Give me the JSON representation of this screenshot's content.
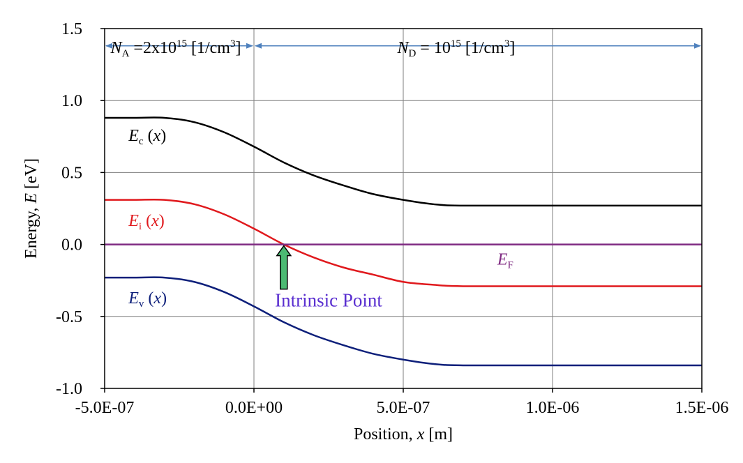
{
  "chart_data": {
    "type": "line",
    "xlabel": {
      "prefix": "Position, ",
      "var": "x",
      "suffix": " [m]"
    },
    "ylabel": {
      "prefix": "Energy, ",
      "var": "E",
      "suffix": " [eV]"
    },
    "xlim": [
      -5e-07,
      1.5e-06
    ],
    "ylim": [
      -1.0,
      1.5
    ],
    "x_ticks": [
      -5e-07,
      0,
      5e-07,
      1e-06,
      1.5e-06
    ],
    "x_tick_labels": [
      "-5.0E-07",
      "0.0E+00",
      "5.0E-07",
      "1.0E-06",
      "1.5E-06"
    ],
    "y_ticks": [
      -1.0,
      -0.5,
      0.0,
      0.5,
      1.0,
      1.5
    ],
    "y_tick_labels": [
      "-1.0",
      "-0.5",
      "0.0",
      "0.5",
      "1.0",
      "1.5"
    ],
    "grid": true,
    "series": [
      {
        "key": "Ec",
        "color": "#000000",
        "x": [
          -5e-07,
          -4e-07,
          -3e-07,
          -2e-07,
          -1e-07,
          0,
          1e-07,
          2e-07,
          3e-07,
          4e-07,
          5e-07,
          6e-07,
          7e-07,
          1e-06,
          1.5e-06
        ],
        "y": [
          0.88,
          0.88,
          0.88,
          0.85,
          0.78,
          0.68,
          0.57,
          0.48,
          0.41,
          0.35,
          0.31,
          0.28,
          0.27,
          0.27,
          0.27
        ]
      },
      {
        "key": "Ei",
        "color": "#e0191d",
        "x": [
          -5e-07,
          -4e-07,
          -3e-07,
          -2e-07,
          -1e-07,
          0,
          1e-07,
          2e-07,
          3e-07,
          4e-07,
          5e-07,
          6e-07,
          7e-07,
          1e-06,
          1.5e-06
        ],
        "y": [
          0.31,
          0.31,
          0.31,
          0.28,
          0.21,
          0.11,
          0.0,
          -0.09,
          -0.16,
          -0.21,
          -0.26,
          -0.28,
          -0.29,
          -0.29,
          -0.29
        ]
      },
      {
        "key": "EF",
        "color": "#7f2a82",
        "x": [
          -5e-07,
          1.5e-06
        ],
        "y": [
          0.0,
          0.0
        ]
      },
      {
        "key": "Ev",
        "color": "#0d1f7a",
        "x": [
          -5e-07,
          -4e-07,
          -3e-07,
          -2e-07,
          -1e-07,
          0,
          1e-07,
          2e-07,
          3e-07,
          4e-07,
          5e-07,
          6e-07,
          7e-07,
          1e-06,
          1.5e-06
        ],
        "y": [
          -0.23,
          -0.23,
          -0.23,
          -0.26,
          -0.33,
          -0.43,
          -0.54,
          -0.63,
          -0.7,
          -0.76,
          -0.8,
          -0.83,
          -0.84,
          -0.84,
          -0.84
        ]
      }
    ],
    "annotations": {
      "ec": {
        "var": "E",
        "sub": "c",
        "rest": " (x)",
        "color": "#000000",
        "x": -4.2e-07,
        "y": 0.72
      },
      "ei": {
        "var": "E",
        "sub": "i",
        "rest": " (x)",
        "color": "#e0191d",
        "x": -4.2e-07,
        "y": 0.13
      },
      "ev": {
        "var": "E",
        "sub": "v",
        "rest": " (x)",
        "color": "#0d1f7a",
        "x": -4.2e-07,
        "y": -0.41
      },
      "ef": {
        "var": "E",
        "sub": "F",
        "color": "#7f2a82",
        "x": 8.15e-07,
        "y": -0.14
      },
      "na": {
        "var": "N",
        "sub": "A",
        "text1": " =2x10",
        "sup1": "15",
        "text2": " [1/cm",
        "sup2": "3",
        "text3": "]",
        "color": "#000000",
        "x": -4.8e-07,
        "y": 1.33
      },
      "nd": {
        "var": "N",
        "sub": "D",
        "text1": " = 10",
        "sup1": "15",
        "text2": " [1/cm",
        "sup2": "3",
        "text3": "]",
        "color": "#000000",
        "x": 4.8e-07,
        "y": 1.33
      }
    },
    "intrinsic_point": {
      "label": "Intrinsic Point",
      "label_color": "#5a2fd0",
      "x": 1e-07,
      "y": 0.0,
      "arrow_tail_y": -0.31,
      "arrow_color": "#4cba73",
      "label_x": 2.5e-07,
      "label_y": -0.43
    },
    "region_arrows": [
      {
        "key": "p-region",
        "x0": -5e-07,
        "x1": 0,
        "y": 1.38,
        "color": "#4f81bd"
      },
      {
        "key": "n-region",
        "x0": 0,
        "x1": 1.5e-06,
        "y": 1.38,
        "color": "#4f81bd"
      }
    ]
  }
}
